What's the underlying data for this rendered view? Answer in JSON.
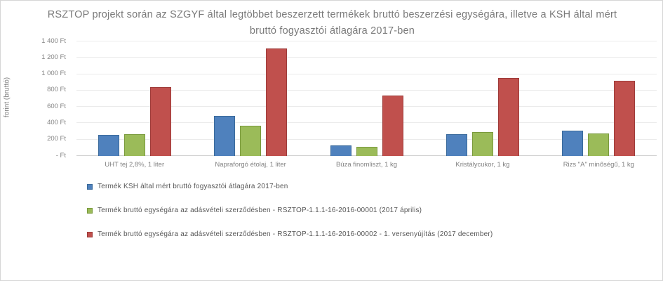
{
  "chart_data": {
    "type": "bar",
    "title": "RSZTOP projekt során az SZGYF által legtöbbet beszerzett termékek bruttó beszerzési egységára, illetve a KSH által mért bruttó fogyasztói átlagára 2017-ben",
    "xlabel": "",
    "ylabel": "forint (bruttó)",
    "ylim": [
      0,
      1400
    ],
    "grid": true,
    "legend_position": "bottom-left",
    "currency_suffix": "Ft",
    "yticks": [
      {
        "value": 1400,
        "label": "1 400 Ft"
      },
      {
        "value": 1200,
        "label": "1 200 Ft"
      },
      {
        "value": 1000,
        "label": "1 000 Ft"
      },
      {
        "value": 800,
        "label": "800 Ft"
      },
      {
        "value": 600,
        "label": "600 Ft"
      },
      {
        "value": 400,
        "label": "400 Ft"
      },
      {
        "value": 200,
        "label": "200 Ft"
      },
      {
        "value": 0,
        "label": "-  Ft"
      }
    ],
    "categories": [
      "UHT tej 2,8%, 1 liter",
      "Napraforgó étolaj, 1 liter",
      "Búza finomliszt, 1 kg",
      "Kristálycukor, 1 kg",
      "Rizs \"A\" minőségű, 1 kg"
    ],
    "series": [
      {
        "name": "Termék KSH által mért bruttó fogyasztói átlagára 2017-ben",
        "color": "#4F81BD",
        "border_color": "#3A6A9B",
        "values": [
          260,
          490,
          130,
          265,
          310
        ]
      },
      {
        "name": "Termék bruttó egységára az adásvételi szerződésben - RSZTOP-1.1.1-16-2016-00001 (2017 április)",
        "color": "#9BBB59",
        "border_color": "#7A9A3D",
        "values": [
          270,
          370,
          110,
          290,
          275
        ]
      },
      {
        "name": "Termék bruttó egységára az adásvételi szerződésben - RSZTOP-1.1.1-16-2016-00002 - 1. versenyújítás (2017 december)",
        "color": "#C0504D",
        "border_color": "#9E3B39",
        "values": [
          840,
          1315,
          740,
          955,
          915
        ]
      }
    ]
  }
}
